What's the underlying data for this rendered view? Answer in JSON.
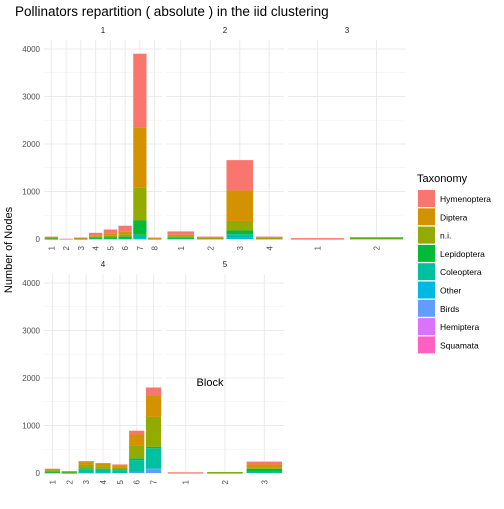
{
  "chart_data": {
    "type": "bar",
    "title": "Pollinators repartition ( absolute ) in the iid clustering",
    "xlabel": "Block",
    "ylabel": "Number of Nodes",
    "ylim": [
      0,
      4000
    ],
    "y_ticks": [
      "0",
      "1000",
      "2000",
      "3000",
      "4000"
    ],
    "grid": true,
    "legend": {
      "title": "Taxonomy",
      "position": "right",
      "entries": [
        {
          "name": "Hymenoptera",
          "color": "#F8766D"
        },
        {
          "name": "Diptera",
          "color": "#D39200"
        },
        {
          "name": "n.i.",
          "color": "#93AA00"
        },
        {
          "name": "Lepidoptera",
          "color": "#00BA38"
        },
        {
          "name": "Coleoptera",
          "color": "#00C19F"
        },
        {
          "name": "Other",
          "color": "#00B9E3"
        },
        {
          "name": "Birds",
          "color": "#619CFF"
        },
        {
          "name": "Hemiptera",
          "color": "#DB72FB"
        },
        {
          "name": "Squamata",
          "color": "#FF61C3"
        }
      ]
    },
    "panels": [
      {
        "label": "1",
        "categories": [
          "1",
          "2",
          "3",
          "4",
          "5",
          "6",
          "7",
          "8"
        ],
        "bars": [
          {
            "Hymenoptera": 10,
            "Diptera": 10,
            "n.i.": 20,
            "Lepidoptera": 5,
            "Coleoptera": 5
          },
          {
            "Hymenoptera": 5
          },
          {
            "Hymenoptera": 5,
            "Diptera": 5,
            "n.i.": 10,
            "Lepidoptera": 5,
            "Coleoptera": 5
          },
          {
            "Hymenoptera": 60,
            "Diptera": 20,
            "n.i.": 20,
            "Lepidoptera": 20,
            "Coleoptera": 10
          },
          {
            "Hymenoptera": 80,
            "Diptera": 40,
            "n.i.": 40,
            "Lepidoptera": 30,
            "Coleoptera": 10
          },
          {
            "Hymenoptera": 130,
            "Diptera": 50,
            "n.i.": 50,
            "Lepidoptera": 40,
            "Coleoptera": 10
          },
          {
            "Hymenoptera": 1550,
            "Diptera": 1270,
            "n.i.": 690,
            "Lepidoptera": 300,
            "Coleoptera": 80,
            "Other": 10
          },
          {
            "Hymenoptera": 10,
            "Diptera": 10,
            "n.i.": 5,
            "Lepidoptera": 5
          }
        ]
      },
      {
        "label": "2",
        "categories": [
          "1",
          "2",
          "3",
          "4"
        ],
        "bars": [
          {
            "Hymenoptera": 70,
            "Diptera": 30,
            "n.i.": 30,
            "Lepidoptera": 20,
            "Coleoptera": 10
          },
          {
            "Hymenoptera": 20,
            "Diptera": 10,
            "n.i.": 10,
            "Lepidoptera": 10
          },
          {
            "Hymenoptera": 640,
            "Diptera": 640,
            "n.i.": 200,
            "Lepidoptera": 80,
            "Coleoptera": 70,
            "Other": 30
          },
          {
            "Hymenoptera": 20,
            "Diptera": 10,
            "n.i.": 10,
            "Lepidoptera": 10
          }
        ]
      },
      {
        "label": "3",
        "categories": [
          "1",
          "2"
        ],
        "bars": [
          {
            "Hymenoptera": 15,
            "Diptera": 5
          },
          {
            "Hymenoptera": 5,
            "Diptera": 5,
            "n.i.": 20,
            "Lepidoptera": 10
          }
        ]
      },
      {
        "label": "4",
        "categories": [
          "1",
          "2",
          "3",
          "4",
          "5",
          "6",
          "7"
        ],
        "bars": [
          {
            "Hymenoptera": 10,
            "Diptera": 20,
            "n.i.": 40,
            "Lepidoptera": 10,
            "Coleoptera": 10
          },
          {
            "Hymenoptera": 5,
            "Diptera": 5,
            "n.i.": 20,
            "Lepidoptera": 5,
            "Coleoptera": 5
          },
          {
            "Hymenoptera": 20,
            "Diptera": 60,
            "n.i.": 70,
            "Lepidoptera": 20,
            "Coleoptera": 70,
            "Other": 10
          },
          {
            "Hymenoptera": 20,
            "Diptera": 50,
            "n.i.": 50,
            "Lepidoptera": 20,
            "Coleoptera": 60,
            "Other": 10
          },
          {
            "Hymenoptera": 20,
            "Diptera": 40,
            "n.i.": 40,
            "Lepidoptera": 20,
            "Coleoptera": 60
          },
          {
            "Hymenoptera": 80,
            "Diptera": 240,
            "n.i.": 260,
            "Lepidoptera": 40,
            "Coleoptera": 240,
            "Other": 10,
            "Birds": 20
          },
          {
            "Hymenoptera": 160,
            "Diptera": 460,
            "n.i.": 630,
            "Lepidoptera": 30,
            "Coleoptera": 420,
            "Other": 20,
            "Birds": 80
          }
        ]
      },
      {
        "label": "5",
        "categories": [
          "1",
          "2",
          "3"
        ],
        "bars": [
          {
            "Hymenoptera": 10,
            "Diptera": 5
          },
          {
            "n.i.": 5,
            "Lepidoptera": 10,
            "Coleoptera": 5
          },
          {
            "Hymenoptera": 60,
            "Diptera": 60,
            "n.i.": 30,
            "Lepidoptera": 60,
            "Coleoptera": 30
          }
        ]
      }
    ]
  }
}
